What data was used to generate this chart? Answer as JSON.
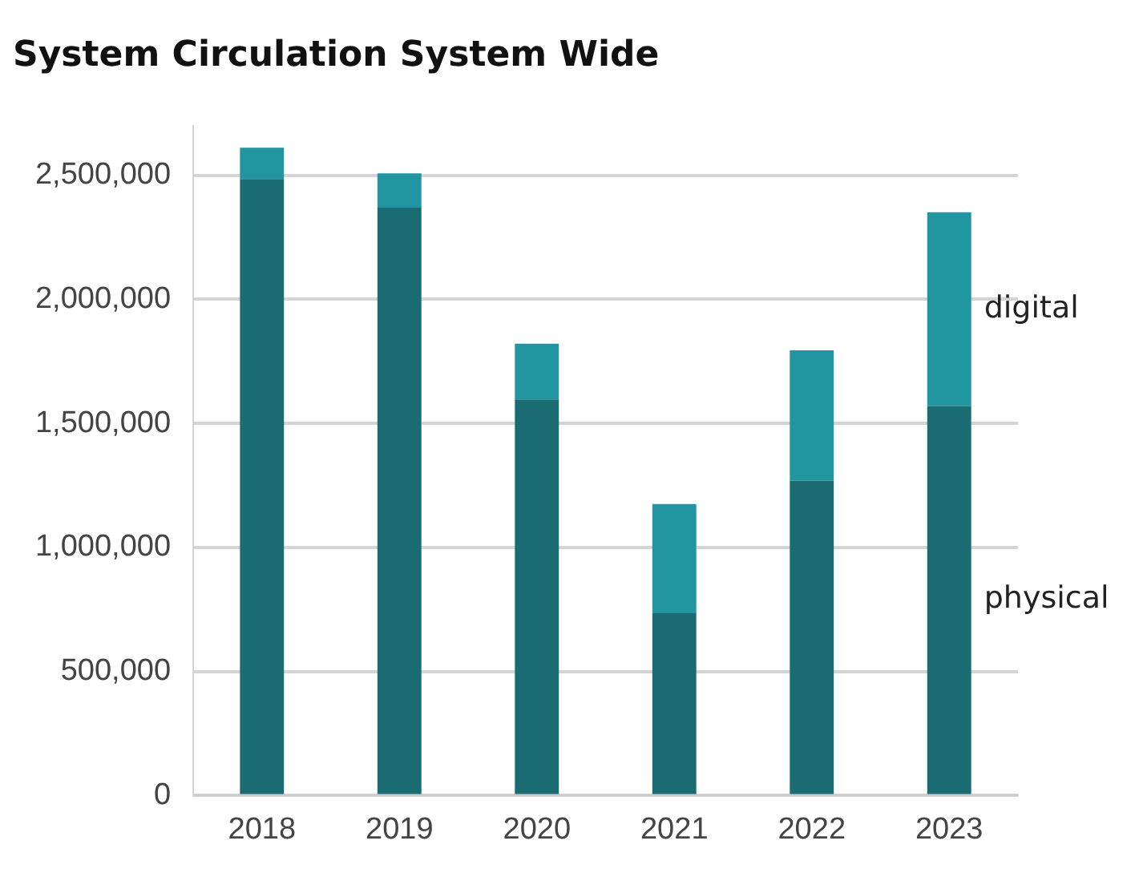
{
  "chart_data": {
    "type": "bar",
    "title": "System Circulation System Wide",
    "categories": [
      "2018",
      "2019",
      "2020",
      "2021",
      "2022",
      "2023"
    ],
    "stacked": true,
    "series": [
      {
        "name": "physical",
        "color": "#1a6b72",
        "values": [
          2485000,
          2370000,
          1597000,
          735000,
          1269000,
          1570000
        ]
      },
      {
        "name": "digital",
        "color": "#2196a0",
        "values": [
          126000,
          138000,
          224000,
          440000,
          526000,
          781000
        ]
      }
    ],
    "ylim": [
      0,
      2700000
    ],
    "yticks": [
      {
        "value": 0,
        "label": "0"
      },
      {
        "value": 500000,
        "label": "500,000"
      },
      {
        "value": 1000000,
        "label": "1,000,000"
      },
      {
        "value": 1500000,
        "label": "1,500,000"
      },
      {
        "value": 2000000,
        "label": "2,000,000"
      },
      {
        "value": 2500000,
        "label": "2,500,000"
      }
    ],
    "grid": "y",
    "legend": false
  }
}
